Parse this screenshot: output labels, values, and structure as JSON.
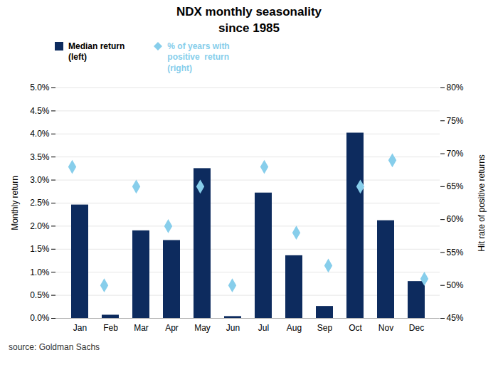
{
  "chart_data": {
    "type": "bar",
    "title": "NDX monthly seasonality\nsince 1985",
    "categories": [
      "Jan",
      "Feb",
      "Mar",
      "Apr",
      "May",
      "Jun",
      "Jul",
      "Aug",
      "Sep",
      "Oct",
      "Nov",
      "Dec"
    ],
    "series": [
      {
        "name": "Median return\n(left)",
        "type": "bar",
        "color": "#0d2b5e",
        "values": [
          2.46,
          0.07,
          1.9,
          1.69,
          3.25,
          0.04,
          2.72,
          1.36,
          0.26,
          4.02,
          2.12,
          0.8
        ]
      },
      {
        "name": "% of years with\npositive  return\n(right)",
        "type": "scatter",
        "axis": "y2",
        "marker": "diamond",
        "color": "#87ceeb",
        "values": [
          68,
          50,
          65,
          59,
          65,
          50,
          68,
          58,
          53,
          65,
          69,
          51
        ]
      }
    ],
    "ylabel": "Monthly return",
    "y2label": "Hit rate of positive returns",
    "ylim": [
      0.0,
      5.0
    ],
    "yticks": [
      {
        "value": 0.0,
        "label": "0.0%"
      },
      {
        "value": 0.5,
        "label": "0.5%"
      },
      {
        "value": 1.0,
        "label": "1.0%"
      },
      {
        "value": 1.5,
        "label": "1.5%"
      },
      {
        "value": 2.0,
        "label": "2.0%"
      },
      {
        "value": 2.5,
        "label": "2.5%"
      },
      {
        "value": 3.0,
        "label": "3.0%"
      },
      {
        "value": 3.5,
        "label": "3.5%"
      },
      {
        "value": 4.0,
        "label": "4.0%"
      },
      {
        "value": 4.5,
        "label": "4.5%"
      },
      {
        "value": 5.0,
        "label": "5.0%"
      }
    ],
    "y2lim": [
      45,
      80
    ],
    "y2ticks": [
      {
        "value": 45,
        "label": "45%"
      },
      {
        "value": 50,
        "label": "50%"
      },
      {
        "value": 55,
        "label": "55%"
      },
      {
        "value": 60,
        "label": "60%"
      },
      {
        "value": 65,
        "label": "65%"
      },
      {
        "value": 70,
        "label": "70%"
      },
      {
        "value": 75,
        "label": "75%"
      },
      {
        "value": 80,
        "label": "80%"
      }
    ],
    "grid": true,
    "legend": "upper left",
    "caption": "source: Goldman Sachs"
  }
}
